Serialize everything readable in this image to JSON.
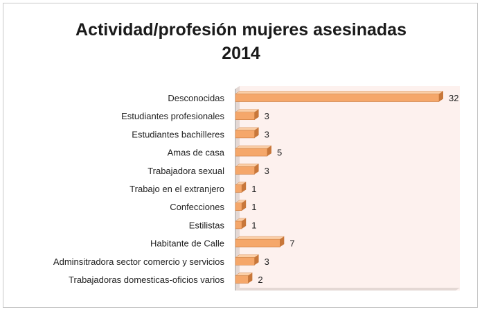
{
  "chart_data": {
    "type": "bar",
    "orientation": "horizontal",
    "title_lines": [
      "Actividad/profesión mujeres asesinadas",
      "2014"
    ],
    "categories": [
      "Desconocidas",
      "Estudiantes profesionales",
      "Estudiantes bachilleres",
      "Amas de casa",
      "Trabajadora sexual",
      "Trabajo en el extranjero",
      "Confecciones",
      "Estilistas",
      "Habitante de Calle",
      "Adminsitradora sector comercio y servicios",
      "Trabajadoras domesticas-oficios varios"
    ],
    "values": [
      32,
      3,
      3,
      5,
      3,
      1,
      1,
      1,
      7,
      3,
      2
    ],
    "xlim": [
      0,
      32
    ],
    "grid": false,
    "legend": "none",
    "colors": {
      "bar_face": "#f5a76a",
      "bar_top": "#fbcfa8",
      "bar_edge": "#c8773a",
      "plot_bg": "#fdf1ee",
      "plot_wall": "#e4d8d4",
      "axis": "#9a9a9a"
    }
  }
}
